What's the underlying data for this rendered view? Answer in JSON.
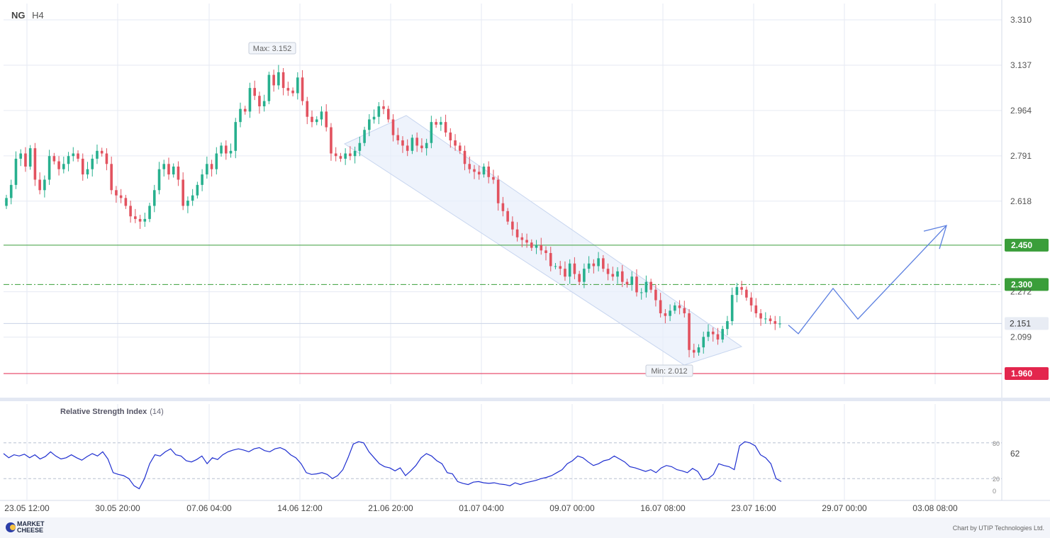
{
  "header": {
    "symbol": "NG",
    "timeframe": "H4"
  },
  "footer": {
    "logo_line1": "MARKET",
    "logo_line2": "CHEESE",
    "credit": "Chart by UTIP Technologies Ltd."
  },
  "chart_data": [
    {
      "type": "candlestick",
      "title": "",
      "y_ticks": [
        3.31,
        3.137,
        2.964,
        2.791,
        2.618,
        2.272,
        2.099
      ],
      "ylim": [
        1.925,
        3.35
      ],
      "x_ticks": [
        "23.05 12:00",
        "30.05 20:00",
        "07.06 04:00",
        "14.06 12:00",
        "21.06 20:00",
        "01.07 04:00",
        "09.07 00:00",
        "16.07 08:00",
        "23.07 16:00",
        "29.07 00:00",
        "03.08 08:00"
      ],
      "levels": [
        {
          "value": 2.45,
          "label": "2.450",
          "color": "#3a9e3a",
          "style": "solid"
        },
        {
          "value": 2.3,
          "label": "2.300",
          "color": "#3a9e3a",
          "style": "dashdot"
        },
        {
          "value": 1.96,
          "label": "1.960",
          "color": "#e3264d",
          "style": "solid"
        }
      ],
      "current_price": {
        "label": "2.151",
        "value": 2.151
      },
      "annotations": {
        "max_label": "Max: 3.152",
        "min_label": "Min: 2.012"
      },
      "closes": [
        2.63,
        2.68,
        2.78,
        2.8,
        2.75,
        2.82,
        2.7,
        2.66,
        2.7,
        2.79,
        2.77,
        2.74,
        2.76,
        2.79,
        2.8,
        2.78,
        2.72,
        2.74,
        2.78,
        2.81,
        2.8,
        2.76,
        2.66,
        2.64,
        2.63,
        2.6,
        2.56,
        2.55,
        2.54,
        2.55,
        2.6,
        2.66,
        2.74,
        2.76,
        2.72,
        2.75,
        2.7,
        2.6,
        2.62,
        2.64,
        2.68,
        2.72,
        2.76,
        2.74,
        2.8,
        2.83,
        2.8,
        2.81,
        2.92,
        2.97,
        2.96,
        3.05,
        3.02,
        2.98,
        3.0,
        3.1,
        3.06,
        3.11,
        3.05,
        3.04,
        3.03,
        3.09,
        3.0,
        2.94,
        2.92,
        2.93,
        2.96,
        2.9,
        2.8,
        2.79,
        2.78,
        2.8,
        2.79,
        2.81,
        2.84,
        2.89,
        2.93,
        2.94,
        2.98,
        2.97,
        2.93,
        2.87,
        2.85,
        2.83,
        2.81,
        2.86,
        2.83,
        2.82,
        2.84,
        2.92,
        2.91,
        2.92,
        2.88,
        2.85,
        2.83,
        2.81,
        2.76,
        2.74,
        2.73,
        2.72,
        2.75,
        2.71,
        2.7,
        2.61,
        2.58,
        2.54,
        2.51,
        2.48,
        2.47,
        2.46,
        2.44,
        2.45,
        2.43,
        2.42,
        2.37,
        2.37,
        2.36,
        2.33,
        2.38,
        2.34,
        2.31,
        2.36,
        2.38,
        2.37,
        2.4,
        2.36,
        2.34,
        2.33,
        2.35,
        2.31,
        2.3,
        2.33,
        2.27,
        2.27,
        2.31,
        2.28,
        2.24,
        2.19,
        2.18,
        2.2,
        2.22,
        2.21,
        2.19,
        2.05,
        2.04,
        2.06,
        2.1,
        2.12,
        2.11,
        2.09,
        2.13,
        2.16,
        2.26,
        2.29,
        2.28,
        2.25,
        2.22,
        2.19,
        2.17,
        2.17,
        2.16,
        2.15,
        2.151
      ]
    },
    {
      "type": "line",
      "title": "Relative Strength Index",
      "period": "(14)",
      "y_ticks": [
        80,
        62,
        20,
        0
      ],
      "ylim": [
        0,
        100
      ],
      "values": [
        62,
        55,
        60,
        58,
        61,
        55,
        60,
        53,
        57,
        65,
        58,
        53,
        55,
        60,
        55,
        51,
        57,
        62,
        58,
        65,
        53,
        30,
        27,
        25,
        20,
        8,
        3,
        20,
        45,
        60,
        58,
        65,
        70,
        60,
        58,
        50,
        48,
        52,
        58,
        45,
        55,
        52,
        60,
        65,
        68,
        70,
        68,
        65,
        70,
        72,
        67,
        65,
        70,
        72,
        68,
        60,
        55,
        45,
        30,
        27,
        28,
        30,
        27,
        20,
        25,
        35,
        55,
        78,
        82,
        80,
        65,
        55,
        45,
        40,
        38,
        33,
        38,
        25,
        33,
        42,
        55,
        62,
        58,
        50,
        45,
        30,
        28,
        15,
        12,
        10,
        14,
        15,
        13,
        12,
        13,
        11,
        10,
        8,
        13,
        10,
        13,
        15,
        17,
        20,
        22,
        25,
        30,
        35,
        45,
        50,
        58,
        55,
        48,
        42,
        45,
        50,
        52,
        58,
        53,
        48,
        40,
        38,
        35,
        32,
        35,
        30,
        38,
        42,
        40,
        35,
        33,
        30,
        37,
        32,
        18,
        20,
        27,
        45,
        42,
        40,
        35,
        75,
        82,
        80,
        75,
        60,
        55,
        45,
        20,
        15
      ]
    },
    {
      "type": "line",
      "title": "",
      "description_series": "forecast",
      "points": [
        [
          1112,
          2.145
        ],
        [
          1126,
          2.112
        ],
        [
          1175,
          2.285
        ],
        [
          1210,
          2.168
        ],
        [
          1335,
          2.525
        ]
      ]
    }
  ]
}
